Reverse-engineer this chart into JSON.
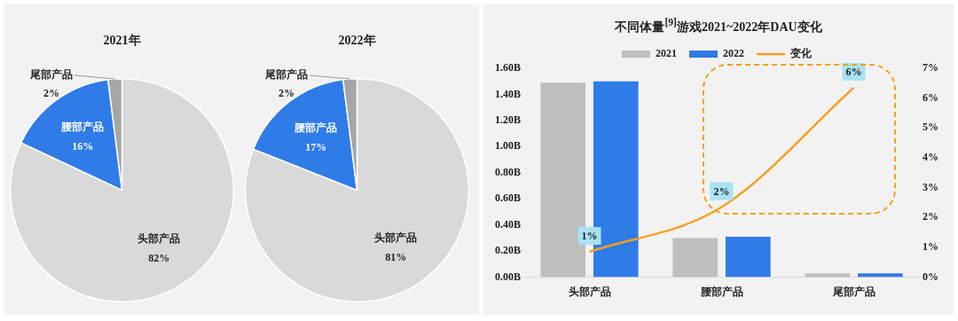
{
  "chart_data": [
    {
      "type": "pie",
      "title": "2021年",
      "categories": [
        "头部产品",
        "腰部产品",
        "尾部产品"
      ],
      "values": [
        82,
        16,
        2
      ],
      "value_labels": [
        "82%",
        "16%",
        "2%"
      ],
      "colors": [
        "#d9d9d9",
        "#2f7be8",
        "#a6a6a6"
      ]
    },
    {
      "type": "pie",
      "title": "2022年",
      "categories": [
        "头部产品",
        "腰部产品",
        "尾部产品"
      ],
      "values": [
        81,
        17,
        2
      ],
      "value_labels": [
        "81%",
        "17%",
        "2%"
      ],
      "colors": [
        "#d9d9d9",
        "#2f7be8",
        "#a6a6a6"
      ]
    },
    {
      "type": "bar",
      "title": "不同体量$^{[9]}$游戏2021~2022年DAU变化",
      "categories": [
        "头部产品",
        "腰部产品",
        "尾部产品"
      ],
      "series": [
        {
          "name": "2021",
          "color": "#bfbfbf",
          "values": [
            1.49,
            0.3,
            0.03
          ]
        },
        {
          "name": "2022",
          "color": "#2f7be8",
          "values": [
            1.5,
            0.31,
            0.03
          ]
        },
        {
          "name": "变化",
          "type": "line",
          "axis": "y2",
          "color": "#f5a01e",
          "values": [
            0.85,
            2.35,
            6.35
          ],
          "value_labels": [
            "1%",
            "2%",
            "6%"
          ]
        }
      ],
      "ylim": [
        0,
        1.6
      ],
      "yticks": [
        {
          "value": 0,
          "label": "0.00B"
        },
        {
          "value": 0.2,
          "label": "0.20B"
        },
        {
          "value": 0.4,
          "label": "0.40B"
        },
        {
          "value": 0.6,
          "label": "0.60B"
        },
        {
          "value": 0.8,
          "label": "0.80B"
        },
        {
          "value": 1,
          "label": "1.00B"
        },
        {
          "value": 1.2,
          "label": "1.20B"
        },
        {
          "value": 1.4,
          "label": "1.40B"
        },
        {
          "value": 1.6,
          "label": "1.60B"
        }
      ],
      "y2lim": [
        0,
        7
      ],
      "y2ticks": [
        {
          "value": 0,
          "label": "0%"
        },
        {
          "value": 1,
          "label": "1%"
        },
        {
          "value": 2,
          "label": "2%"
        },
        {
          "value": 3,
          "label": "3%"
        },
        {
          "value": 4,
          "label": "4%"
        },
        {
          "value": 5,
          "label": "5%"
        },
        {
          "value": 6,
          "label": "6%"
        },
        {
          "value": 7,
          "label": "7%"
        }
      ],
      "grid": false,
      "legend": "top",
      "marker": "none"
    }
  ]
}
